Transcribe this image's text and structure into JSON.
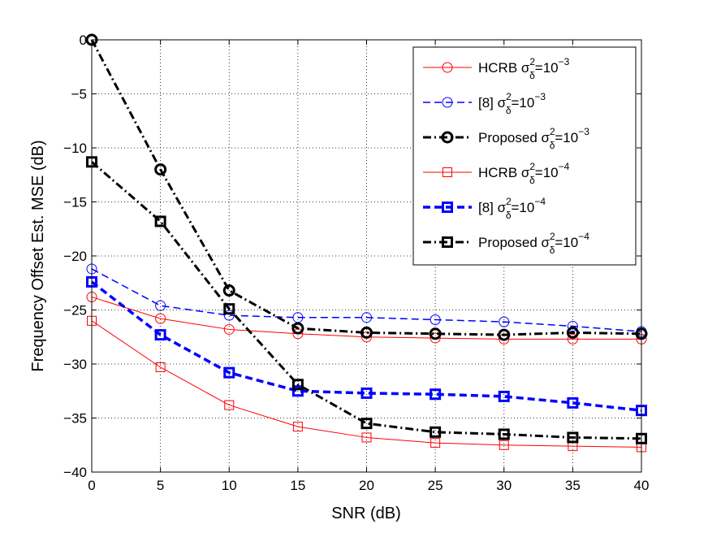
{
  "chart_data": {
    "type": "line",
    "title": "",
    "xlabel": "SNR (dB)",
    "ylabel": "Frequency Offset Est. MSE (dB)",
    "xlim": [
      0,
      40
    ],
    "ylim": [
      -40,
      0
    ],
    "xticks": [
      0,
      5,
      10,
      15,
      20,
      25,
      30,
      35,
      40
    ],
    "yticks": [
      0,
      -5,
      -10,
      -15,
      -20,
      -25,
      -30,
      -35,
      -40
    ],
    "grid": true,
    "legend_position": "top-right",
    "x": [
      0,
      5,
      10,
      15,
      20,
      25,
      30,
      35,
      40
    ],
    "series": [
      {
        "name": "HCRB σδ²=10⁻³",
        "label_main": "HCRB σ",
        "label_sup": "2",
        "label_sub": "δ",
        "label_tail": "=10",
        "label_exp": "−3",
        "color": "#ff0000",
        "dash": "solid",
        "width": 1,
        "marker": "circle",
        "values": [
          -23.8,
          -25.8,
          -26.8,
          -27.2,
          -27.5,
          -27.6,
          -27.7,
          -27.7,
          -27.7
        ]
      },
      {
        "name": "[8] σδ²=10⁻³",
        "label_main": "[8] σ",
        "label_sup": "2",
        "label_sub": "δ",
        "label_tail": "=10",
        "label_exp": "−3",
        "color": "#0000ff",
        "dash": "dashed",
        "width": 1.5,
        "marker": "circle",
        "values": [
          -21.2,
          -24.6,
          -25.5,
          -25.7,
          -25.7,
          -25.9,
          -26.1,
          -26.5,
          -27.0
        ]
      },
      {
        "name": "Proposed σδ²=10⁻³",
        "label_main": "Proposed σ",
        "label_sup": "2",
        "label_sub": "δ",
        "label_tail": "=10",
        "label_exp": "−3",
        "color": "#000000",
        "dash": "dashdot",
        "width": 3,
        "marker": "circle",
        "values": [
          0,
          -12.0,
          -23.2,
          -26.7,
          -27.1,
          -27.2,
          -27.3,
          -27.1,
          -27.2
        ]
      },
      {
        "name": "HCRB σδ²=10⁻⁴",
        "label_main": "HCRB σ",
        "label_sup": "2",
        "label_sub": "δ",
        "label_tail": "=10",
        "label_exp": "−4",
        "color": "#ff0000",
        "dash": "solid",
        "width": 1,
        "marker": "square",
        "values": [
          -26.0,
          -30.3,
          -33.8,
          -35.8,
          -36.8,
          -37.3,
          -37.5,
          -37.6,
          -37.7
        ]
      },
      {
        "name": "[8] σδ²=10⁻⁴",
        "label_main": "[8] σ",
        "label_sup": "2",
        "label_sub": "δ",
        "label_tail": "=10",
        "label_exp": "−4",
        "color": "#0000ff",
        "dash": "dashed",
        "width": 3.5,
        "marker": "square",
        "values": [
          -22.4,
          -27.3,
          -30.8,
          -32.5,
          -32.7,
          -32.8,
          -33.0,
          -33.6,
          -34.3
        ]
      },
      {
        "name": "Proposed σδ²=10⁻⁴",
        "label_main": "Proposed σ",
        "label_sup": "2",
        "label_sub": "δ",
        "label_tail": "=10",
        "label_exp": "−4",
        "color": "#000000",
        "dash": "dashdot",
        "width": 3,
        "marker": "square",
        "values": [
          -11.3,
          -16.8,
          -24.9,
          -31.9,
          -35.5,
          -36.3,
          -36.5,
          -36.8,
          -36.9
        ]
      }
    ]
  }
}
